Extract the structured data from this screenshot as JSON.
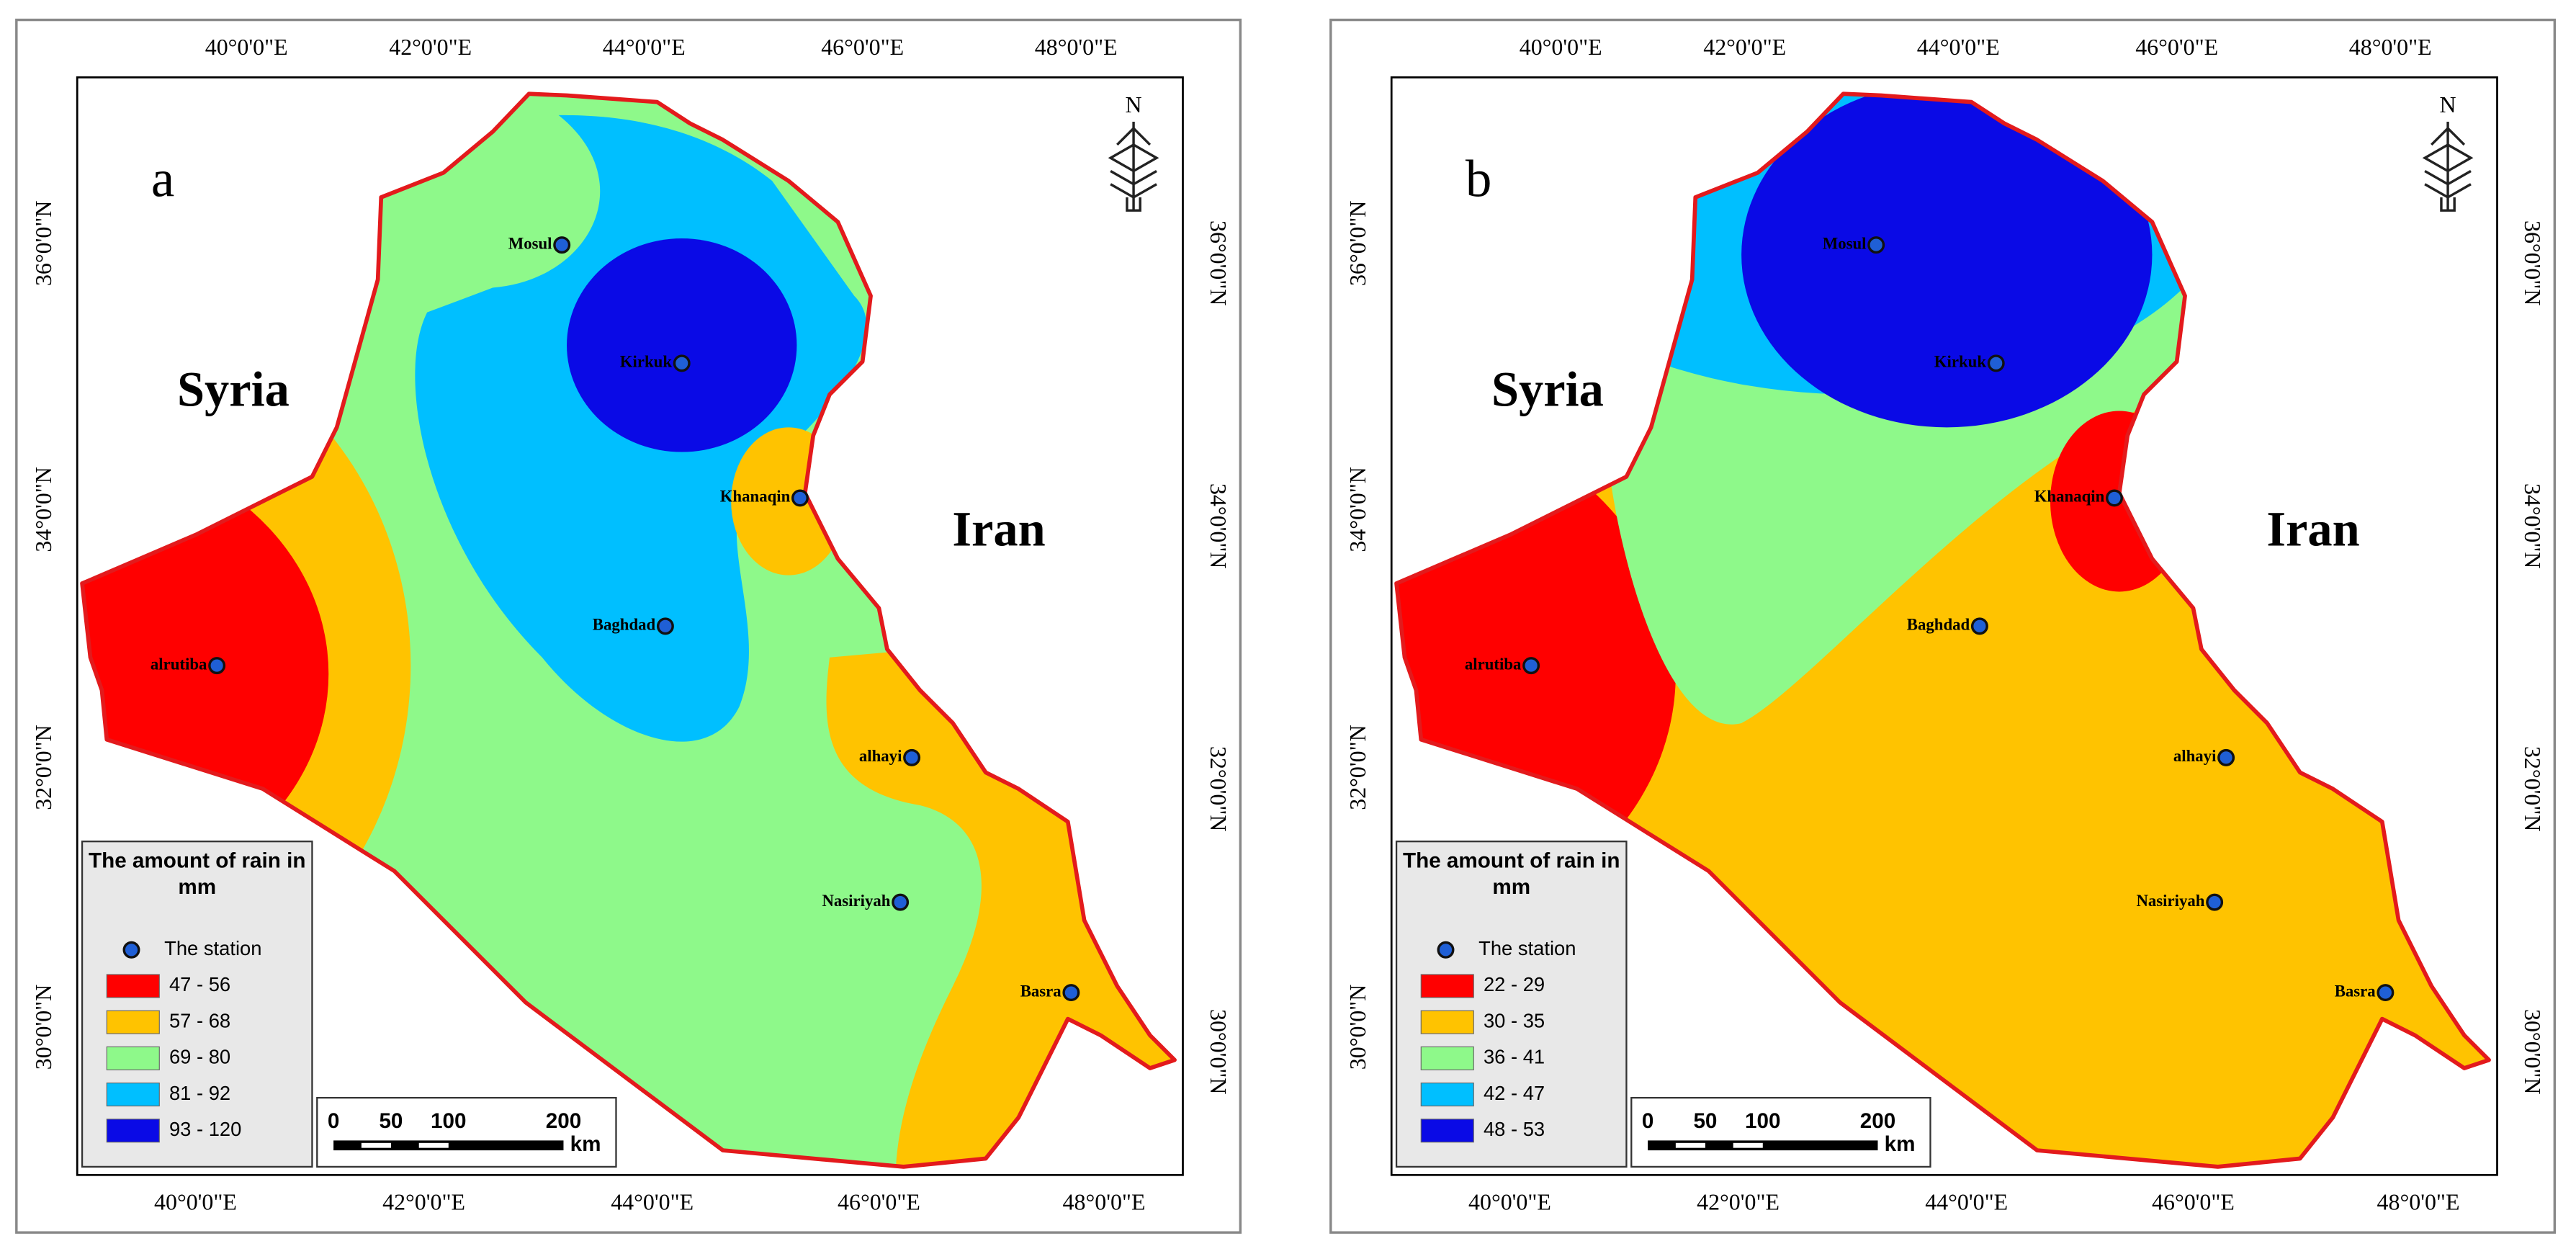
{
  "lon_ticks": [
    "40°0'0\"E",
    "42°0'0\"E",
    "44°0'0\"E",
    "46°0'0\"E",
    "48°0'0\"E"
  ],
  "lat_ticks": [
    "36°0'0\"N",
    "34°0'0\"N",
    "32°0'0\"N",
    "30°0'0\"N"
  ],
  "countries": [
    "Syria",
    "Iran"
  ],
  "stations": [
    "Mosul",
    "Kirkuk",
    "Khanaqin",
    "Baghdad",
    "alrutiba",
    "alhayi",
    "Nasiriyah",
    "Basra"
  ],
  "north": "N",
  "legend": {
    "title": "The amount of rain in mm",
    "station": "The station"
  },
  "scale": {
    "labels": [
      "0",
      "50",
      "100",
      "200"
    ],
    "unit": "km"
  },
  "panels": [
    {
      "label": "a",
      "classes": [
        {
          "label": "47 - 56",
          "color": "#ff0000"
        },
        {
          "label": "57 - 68",
          "color": "#ffc300"
        },
        {
          "label": "69 - 80",
          "color": "#8ef98a"
        },
        {
          "label": "81 - 92",
          "color": "#00bfff"
        },
        {
          "label": "93 - 120",
          "color": "#0a0ae6"
        }
      ]
    },
    {
      "label": "b",
      "classes": [
        {
          "label": "22 - 29",
          "color": "#ff0000"
        },
        {
          "label": "30 - 35",
          "color": "#ffc300"
        },
        {
          "label": "36 - 41",
          "color": "#8ef98a"
        },
        {
          "label": "42 - 47",
          "color": "#00bfff"
        },
        {
          "label": "48 - 53",
          "color": "#0a0ae6"
        }
      ]
    }
  ]
}
